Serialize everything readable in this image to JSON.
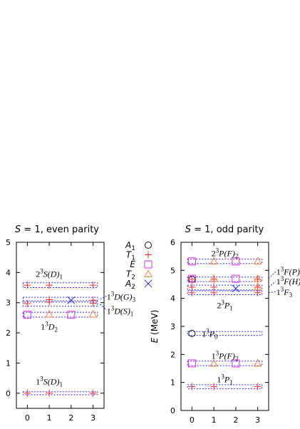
{
  "chart_data": [
    {
      "type": "scatter",
      "title": "S = 1, even parity",
      "title_parts": {
        "S": "S",
        "rest": " = 1, even parity"
      },
      "xlim": [
        -0.5,
        3.5
      ],
      "ylim": [
        -0.5,
        5
      ],
      "x_ticks": [
        0,
        1,
        2,
        3
      ],
      "y_ticks": [
        0,
        1,
        2,
        3,
        4,
        5
      ],
      "series": [
        {
          "name": "T1",
          "marker": "plus",
          "color": "#ff2a2a",
          "points": [
            [
              0,
              0.0
            ],
            [
              1,
              0.0
            ],
            [
              3,
              0.0
            ],
            [
              0,
              2.97
            ],
            [
              1,
              3.02
            ],
            [
              3,
              2.98
            ],
            [
              0,
              3.58
            ],
            [
              1,
              3.58
            ],
            [
              3,
              3.58
            ],
            [
              1,
              3.1
            ],
            [
              3,
              3.08
            ]
          ]
        },
        {
          "name": "E",
          "marker": "square",
          "color": "#ee22ee",
          "points": [
            [
              0,
              2.6
            ],
            [
              2,
              2.6
            ]
          ]
        },
        {
          "name": "T2",
          "marker": "triangle",
          "color": "#ff7f3f",
          "points": [
            [
              1,
              2.62
            ],
            [
              3,
              2.62
            ]
          ]
        },
        {
          "name": "A2",
          "marker": "cross",
          "color": "#2a2aee",
          "points": [
            [
              2,
              3.08
            ]
          ]
        }
      ],
      "bands": [
        {
          "ymin": -0.05,
          "ymax": 0.05
        },
        {
          "ymin": 2.52,
          "ymax": 2.68
        },
        {
          "ymin": 2.88,
          "ymax": 3.06
        },
        {
          "ymin": 3.02,
          "ymax": 3.18
        },
        {
          "ymin": 3.5,
          "ymax": 3.66
        }
      ],
      "labels": [
        {
          "pre": "1",
          "sup": "3",
          "base": "S(D)",
          "sub": "1",
          "x": 1.0,
          "y": 0.38,
          "anchor": "middle"
        },
        {
          "pre": "1",
          "sup": "3",
          "base": "D",
          "sub": "2",
          "x": 1.0,
          "y": 2.2,
          "anchor": "middle"
        },
        {
          "pre": "2",
          "sup": "3",
          "base": "S(D)",
          "sub": "1",
          "x": 1.0,
          "y": 3.95,
          "anchor": "middle"
        },
        {
          "pre": "1",
          "sup": "3",
          "base": "D(G)",
          "sub": "3",
          "x": 3.62,
          "y": 3.2,
          "anchor": "start"
        },
        {
          "pre": "1",
          "sup": "3",
          "base": "D(S)",
          "sub": "1",
          "x": 3.62,
          "y": 2.72,
          "anchor": "start"
        }
      ],
      "leaders": [
        {
          "from": [
            3.32,
            3.12
          ],
          "to": [
            3.62,
            3.22
          ]
        },
        {
          "from": [
            3.32,
            2.95
          ],
          "to": [
            3.62,
            2.75
          ]
        }
      ]
    },
    {
      "type": "scatter",
      "title": "S = 1, odd parity",
      "title_parts": {
        "S": "S",
        "rest": " = 1, odd parity"
      },
      "ylabel": "E (MeV)",
      "ylabel_parts": {
        "E": "E",
        "rest": " (MeV)"
      },
      "xlim": [
        -0.5,
        3.5
      ],
      "ylim": [
        0,
        6
      ],
      "x_ticks": [
        0,
        1,
        2,
        3
      ],
      "y_ticks": [
        0,
        1,
        2,
        3,
        4,
        5,
        6
      ],
      "series": [
        {
          "name": "A1",
          "marker": "circle",
          "color": "#111111",
          "points": [
            [
              0,
              4.68
            ],
            [
              0,
              2.75
            ]
          ]
        },
        {
          "name": "T1",
          "marker": "plus",
          "color": "#ff2a2a",
          "points": [
            [
              0,
              0.85
            ],
            [
              1,
              0.85
            ],
            [
              3,
              0.85
            ],
            [
              0,
              4.2
            ],
            [
              1,
              4.2
            ],
            [
              3,
              4.2
            ],
            [
              0,
              4.4
            ],
            [
              1,
              4.4
            ],
            [
              3,
              4.4
            ],
            [
              0,
              4.68
            ],
            [
              1,
              4.68
            ],
            [
              3,
              4.68
            ]
          ]
        },
        {
          "name": "E",
          "marker": "square",
          "color": "#ee22ee",
          "points": [
            [
              0,
              1.68
            ],
            [
              2,
              1.68
            ],
            [
              0,
              5.32
            ],
            [
              2,
              5.32
            ],
            [
              0,
              4.7
            ],
            [
              2,
              4.7
            ]
          ]
        },
        {
          "name": "T2",
          "marker": "triangle",
          "color": "#ff7f3f",
          "points": [
            [
              1,
              1.68
            ],
            [
              3,
              1.68
            ],
            [
              1,
              5.33
            ],
            [
              3,
              5.33
            ],
            [
              1,
              4.7
            ],
            [
              3,
              4.7
            ],
            [
              3,
              4.4
            ]
          ]
        },
        {
          "name": "A2",
          "marker": "cross",
          "color": "#2a2aee",
          "points": [
            [
              2,
              4.35
            ]
          ]
        }
      ],
      "bands": [
        {
          "ymin": 0.78,
          "ymax": 0.92
        },
        {
          "ymin": 1.6,
          "ymax": 1.76
        },
        {
          "ymin": 2.68,
          "ymax": 2.82
        },
        {
          "ymin": 4.13,
          "ymax": 4.27
        },
        {
          "ymin": 4.3,
          "ymax": 4.47
        },
        {
          "ymin": 4.6,
          "ymax": 4.76
        },
        {
          "ymin": 5.24,
          "ymax": 5.4
        }
      ],
      "labels": [
        {
          "pre": "1",
          "sup": "3",
          "base": "P",
          "sub": "1",
          "x": 1.5,
          "y": 1.1,
          "anchor": "middle"
        },
        {
          "pre": "1",
          "sup": "3",
          "base": "P(F)",
          "sub": "2",
          "x": 1.5,
          "y": 1.95,
          "anchor": "middle"
        },
        {
          "pre": "1",
          "sup": "3",
          "base": "P",
          "sub": "0",
          "x": 0.45,
          "y": 2.73,
          "anchor": "start"
        },
        {
          "pre": "2",
          "sup": "3",
          "base": "P",
          "sub": "1",
          "x": 1.5,
          "y": 3.75,
          "anchor": "middle"
        },
        {
          "pre": "2",
          "sup": "3",
          "base": "P(F)",
          "sub": "2",
          "x": 1.5,
          "y": 5.6,
          "anchor": "middle"
        },
        {
          "pre": "1",
          "sup": "3",
          "base": "F(P)",
          "sub": "",
          "x": 3.85,
          "y": 4.94,
          "anchor": "start"
        },
        {
          "pre": "1",
          "sup": "3",
          "base": "F(H)",
          "sub": "",
          "x": 3.85,
          "y": 4.6,
          "anchor": "start"
        },
        {
          "pre": "1",
          "sup": "3",
          "base": "F",
          "sub": "3",
          "x": 3.85,
          "y": 4.22,
          "anchor": "start"
        }
      ],
      "leaders": [
        {
          "from": [
            3.5,
            4.7
          ],
          "to": [
            3.82,
            4.96
          ]
        },
        {
          "from": [
            3.5,
            4.4
          ],
          "to": [
            3.82,
            4.6
          ]
        },
        {
          "from": [
            3.5,
            4.2
          ],
          "to": [
            3.82,
            4.24
          ]
        }
      ]
    }
  ],
  "legend": {
    "entries": [
      {
        "base": "A",
        "sub": "1",
        "marker": "circle",
        "color": "#111111"
      },
      {
        "base": "T",
        "sub": "1",
        "marker": "plus",
        "color": "#ff2a2a"
      },
      {
        "base": "E",
        "sub": "",
        "marker": "square",
        "color": "#ee22ee"
      },
      {
        "base": "T",
        "sub": "2",
        "marker": "triangle",
        "color": "#ff7f3f"
      },
      {
        "base": "A",
        "sub": "2",
        "marker": "cross",
        "color": "#2a2aee"
      }
    ]
  },
  "colors": {
    "band": "#2a2aee",
    "leader": "#2a2aee",
    "axis": "#000000"
  }
}
